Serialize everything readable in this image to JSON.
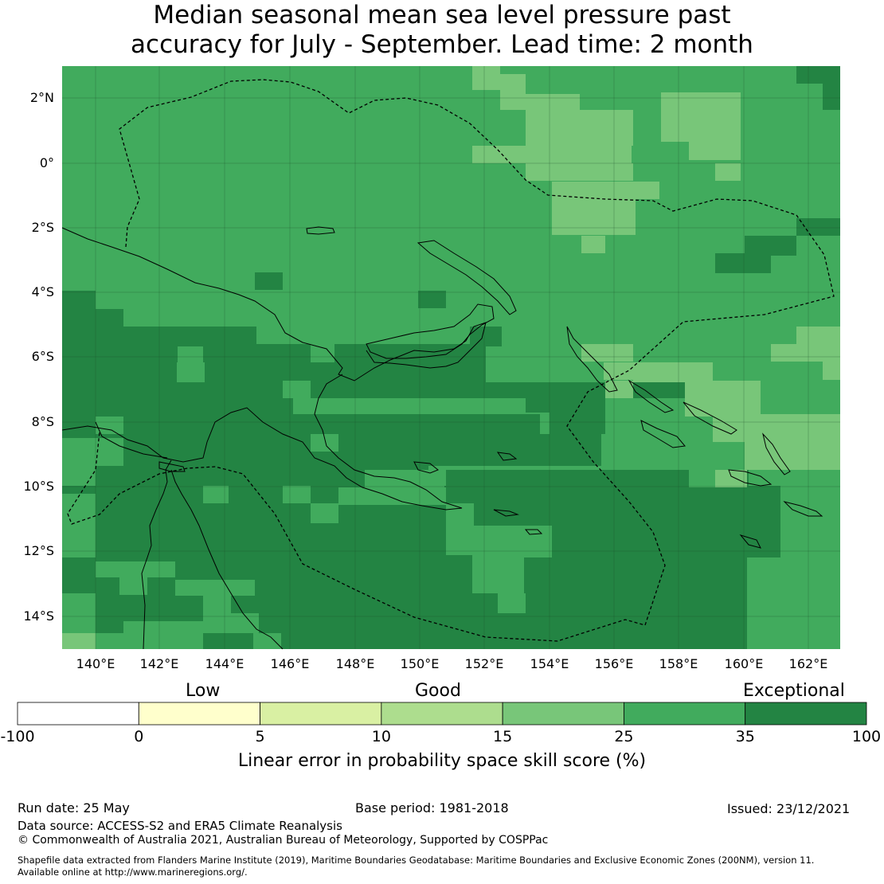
{
  "title_line1": "Median seasonal mean sea level pressure past",
  "title_line2": "accuracy for July - September. Lead time: 2 month",
  "lat_labels": [
    "2°N",
    "0°",
    "2°S",
    "4°S",
    "6°S",
    "8°S",
    "10°S",
    "12°S",
    "14°S"
  ],
  "lon_labels": [
    "140°E",
    "142°E",
    "144°E",
    "146°E",
    "148°E",
    "150°E",
    "152°E",
    "154°E",
    "156°E",
    "158°E",
    "160°E",
    "162°E"
  ],
  "colorbar": {
    "categories": [
      "Low",
      "Good",
      "Exceptional"
    ],
    "ticks": [
      "-100",
      "0",
      "5",
      "10",
      "15",
      "25",
      "35",
      "100"
    ],
    "colors": [
      "#ffffff",
      "#ffffcc",
      "#d9f0a3",
      "#addd8e",
      "#78c679",
      "#41ab5d",
      "#238443"
    ],
    "label": "Linear error in probability space skill score (%)"
  },
  "colors": {
    "exceptional": "#238443",
    "high": "#41ab5d",
    "mid": "#78c679"
  },
  "footer": {
    "run_date": "Run date: 25 May",
    "base_period": "Base period: 1981-2018",
    "issued": "Issued: 23/12/2021",
    "data_source": "Data source: ACCESS-S2 and ERA5 Climate Reanalysis",
    "copyright": "© Commonwealth of Australia 2021, Australian Bureau of Meteorology, Supported by COSPPac",
    "shapefile1": "Shapefile data extracted from Flanders Marine Institute (2019), Maritime Boundaries Geodatabase: Maritime Boundaries and Exclusive Economic Zones (200NM), version 11.",
    "shapefile2": "Available online at http://www.marineregions.org/."
  }
}
